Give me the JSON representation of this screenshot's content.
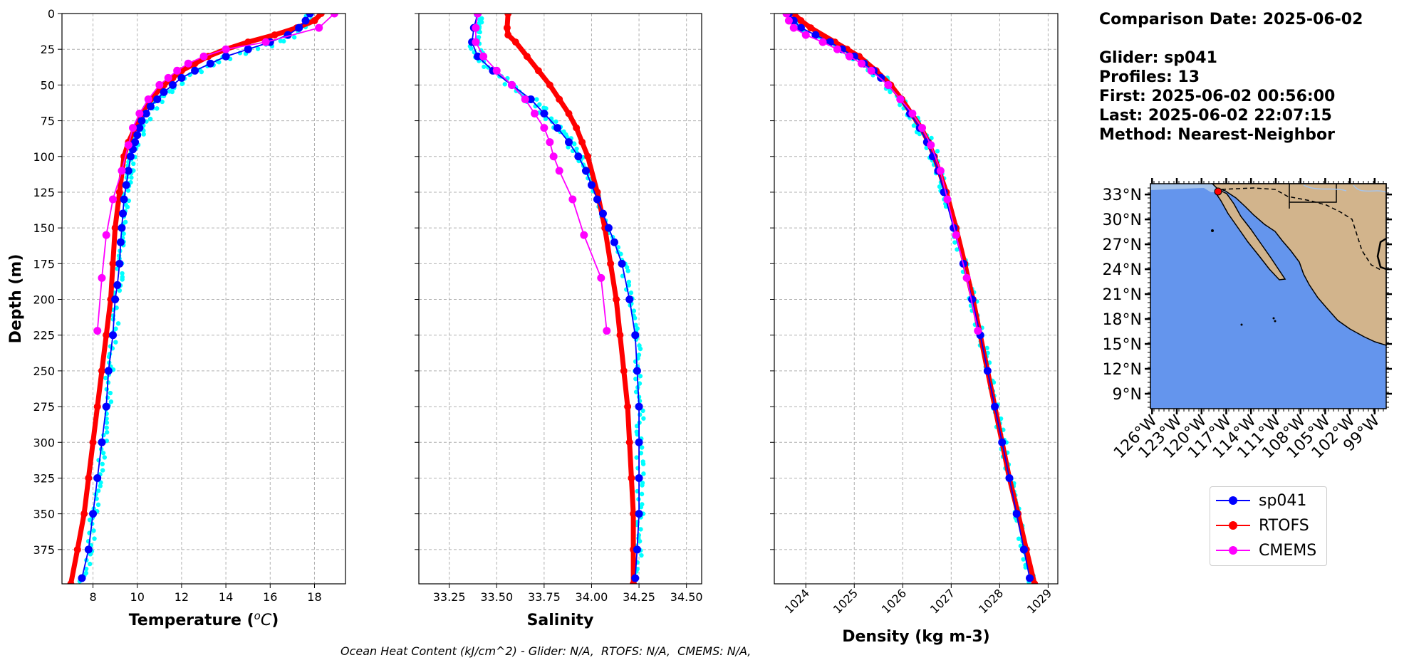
{
  "info": {
    "comparison_date": "Comparison Date: 2025-06-02",
    "glider": "Glider: sp041",
    "profiles": "Profiles: 13",
    "first": "First: 2025-06-02 00:56:00",
    "last": "Last: 2025-06-02 22:07:15",
    "method": "Method: Nearest-Neighbor"
  },
  "footer_text": "Ocean Heat Content (kJ/cm^2) - Glider: N/A,  RTOFS: N/A,  CMEMS: N/A,",
  "colors": {
    "glider": "#0000ff",
    "glider_raw": "#00ffff",
    "rtofs": "#ff0000",
    "cmems": "#ff00ff",
    "ocean": "#6495ed",
    "land": "#d2b48c",
    "shelf": "#a7c4ea"
  },
  "legend": [
    {
      "label": "sp041",
      "color": "#0000ff"
    },
    {
      "label": "RTOFS",
      "color": "#ff0000"
    },
    {
      "label": "CMEMS",
      "color": "#ff00ff"
    }
  ],
  "chart_data": [
    {
      "type": "line",
      "xlabel": "Temperature (°C)",
      "ylabel": "Depth (m)",
      "xlim": [
        6.6,
        19.4
      ],
      "ylim": [
        399,
        0
      ],
      "xticks": [
        8,
        10,
        12,
        14,
        16,
        18
      ],
      "yticks": [
        0,
        25,
        50,
        75,
        100,
        125,
        150,
        175,
        200,
        225,
        250,
        275,
        300,
        325,
        350,
        375
      ],
      "grid": true,
      "series": [
        {
          "name": "sp041",
          "depth": [
            0,
            5,
            10,
            15,
            20,
            25,
            30,
            35,
            40,
            45,
            50,
            55,
            60,
            65,
            70,
            75,
            80,
            85,
            90,
            95,
            100,
            110,
            120,
            130,
            140,
            150,
            160,
            175,
            190,
            200,
            225,
            250,
            275,
            300,
            325,
            350,
            375,
            395
          ],
          "values": [
            17.8,
            17.6,
            17.3,
            16.8,
            16.0,
            15.0,
            14.0,
            13.3,
            12.6,
            12.0,
            11.6,
            11.2,
            10.9,
            10.6,
            10.4,
            10.2,
            10.1,
            10.0,
            9.9,
            9.8,
            9.7,
            9.6,
            9.5,
            9.4,
            9.35,
            9.3,
            9.25,
            9.2,
            9.1,
            9.0,
            8.9,
            8.7,
            8.6,
            8.4,
            8.2,
            8.0,
            7.8,
            7.5
          ]
        },
        {
          "name": "RTOFS",
          "depth": [
            0,
            5,
            10,
            15,
            20,
            25,
            30,
            35,
            40,
            45,
            50,
            60,
            70,
            80,
            90,
            100,
            125,
            150,
            175,
            200,
            225,
            250,
            275,
            300,
            325,
            350,
            375,
            399
          ],
          "values": [
            18.3,
            18.0,
            17.2,
            16.2,
            15.0,
            14.0,
            13.2,
            12.6,
            12.0,
            11.6,
            11.2,
            10.6,
            10.2,
            9.9,
            9.6,
            9.4,
            9.2,
            9.0,
            8.9,
            8.8,
            8.6,
            8.4,
            8.2,
            8.0,
            7.8,
            7.6,
            7.3,
            7.0
          ]
        },
        {
          "name": "CMEMS",
          "depth": [
            0,
            10,
            20,
            25,
            30,
            35,
            40,
            45,
            50,
            60,
            70,
            80,
            92,
            110,
            130,
            155,
            185,
            222
          ],
          "values": [
            18.9,
            18.2,
            15.8,
            14.0,
            13.0,
            12.3,
            11.8,
            11.4,
            11.0,
            10.5,
            10.1,
            9.8,
            9.6,
            9.3,
            8.9,
            8.6,
            8.4,
            8.2
          ]
        }
      ]
    },
    {
      "type": "line",
      "xlabel": "Salinity",
      "ylabel": "",
      "xlim": [
        33.09,
        34.58
      ],
      "ylim": [
        399,
        0
      ],
      "xticks": [
        33.25,
        33.5,
        33.75,
        34.0,
        34.25,
        34.5
      ],
      "xticklabels": [
        "33.25",
        "33.50",
        "33.75",
        "34.00",
        "34.25",
        "34.50"
      ],
      "grid": true,
      "series": [
        {
          "name": "sp041",
          "depth": [
            0,
            10,
            20,
            30,
            40,
            50,
            60,
            70,
            80,
            90,
            100,
            110,
            120,
            130,
            140,
            150,
            160,
            175,
            200,
            225,
            250,
            275,
            300,
            325,
            350,
            375,
            395
          ],
          "values": [
            33.4,
            33.38,
            33.37,
            33.4,
            33.48,
            33.58,
            33.68,
            33.75,
            33.82,
            33.88,
            33.93,
            33.97,
            34.0,
            34.03,
            34.06,
            34.09,
            34.12,
            34.16,
            34.2,
            34.23,
            34.24,
            34.25,
            34.25,
            34.25,
            34.25,
            34.24,
            34.23
          ]
        },
        {
          "name": "RTOFS",
          "depth": [
            0,
            10,
            15,
            20,
            30,
            40,
            50,
            60,
            70,
            80,
            90,
            100,
            125,
            150,
            175,
            200,
            225,
            250,
            275,
            300,
            325,
            350,
            375,
            399
          ],
          "values": [
            33.56,
            33.555,
            33.56,
            33.6,
            33.66,
            33.72,
            33.78,
            33.83,
            33.88,
            33.92,
            33.95,
            33.98,
            34.03,
            34.07,
            34.1,
            34.13,
            34.15,
            34.17,
            34.19,
            34.2,
            34.21,
            34.22,
            34.22,
            34.22
          ]
        },
        {
          "name": "CMEMS",
          "depth": [
            0,
            10,
            20,
            30,
            40,
            50,
            60,
            70,
            80,
            90,
            100,
            110,
            130,
            155,
            185,
            222
          ],
          "values": [
            33.4,
            33.39,
            33.39,
            33.43,
            33.5,
            33.58,
            33.65,
            33.7,
            33.75,
            33.78,
            33.8,
            33.83,
            33.9,
            33.96,
            34.05,
            34.08
          ]
        }
      ]
    },
    {
      "type": "line",
      "xlabel": "Density (kg m-3)",
      "ylabel": "",
      "xlim": [
        1023.35,
        1029.2
      ],
      "ylim": [
        399,
        0
      ],
      "xticks": [
        1024,
        1025,
        1026,
        1027,
        1028,
        1029
      ],
      "grid": true,
      "series": [
        {
          "name": "sp041",
          "depth": [
            0,
            5,
            10,
            15,
            20,
            25,
            30,
            35,
            40,
            45,
            50,
            60,
            70,
            80,
            90,
            100,
            110,
            125,
            150,
            175,
            200,
            225,
            250,
            275,
            300,
            325,
            350,
            375,
            395
          ],
          "values": [
            1023.65,
            1023.75,
            1023.9,
            1024.2,
            1024.5,
            1024.75,
            1025.0,
            1025.2,
            1025.4,
            1025.55,
            1025.7,
            1025.95,
            1026.15,
            1026.35,
            1026.5,
            1026.62,
            1026.73,
            1026.85,
            1027.05,
            1027.25,
            1027.43,
            1027.6,
            1027.75,
            1027.9,
            1028.05,
            1028.2,
            1028.35,
            1028.5,
            1028.62
          ]
        },
        {
          "name": "RTOFS",
          "depth": [
            0,
            5,
            10,
            20,
            25,
            30,
            40,
            50,
            60,
            70,
            80,
            90,
            100,
            125,
            150,
            175,
            200,
            225,
            250,
            275,
            300,
            325,
            350,
            375,
            399
          ],
          "values": [
            1023.75,
            1023.9,
            1024.1,
            1024.6,
            1024.85,
            1025.1,
            1025.45,
            1025.75,
            1025.98,
            1026.18,
            1026.38,
            1026.53,
            1026.65,
            1026.9,
            1027.1,
            1027.28,
            1027.45,
            1027.6,
            1027.75,
            1027.9,
            1028.05,
            1028.2,
            1028.38,
            1028.55,
            1028.72
          ]
        },
        {
          "name": "CMEMS",
          "depth": [
            0,
            5,
            10,
            15,
            20,
            25,
            30,
            35,
            40,
            50,
            60,
            70,
            80,
            92,
            110,
            130,
            155,
            185,
            222
          ],
          "values": [
            1023.6,
            1023.65,
            1023.75,
            1024.0,
            1024.35,
            1024.65,
            1024.9,
            1025.15,
            1025.35,
            1025.7,
            1025.95,
            1026.2,
            1026.4,
            1026.58,
            1026.78,
            1026.92,
            1027.1,
            1027.32,
            1027.55
          ]
        }
      ]
    }
  ],
  "map": {
    "lat_labels": [
      "33°N",
      "30°N",
      "27°N",
      "24°N",
      "21°N",
      "18°N",
      "15°N",
      "12°N",
      "9°N"
    ],
    "lon_labels": [
      "126°W",
      "123°W",
      "120°W",
      "117°W",
      "114°W",
      "111°W",
      "108°W",
      "105°W",
      "102°W",
      "99°W"
    ]
  }
}
